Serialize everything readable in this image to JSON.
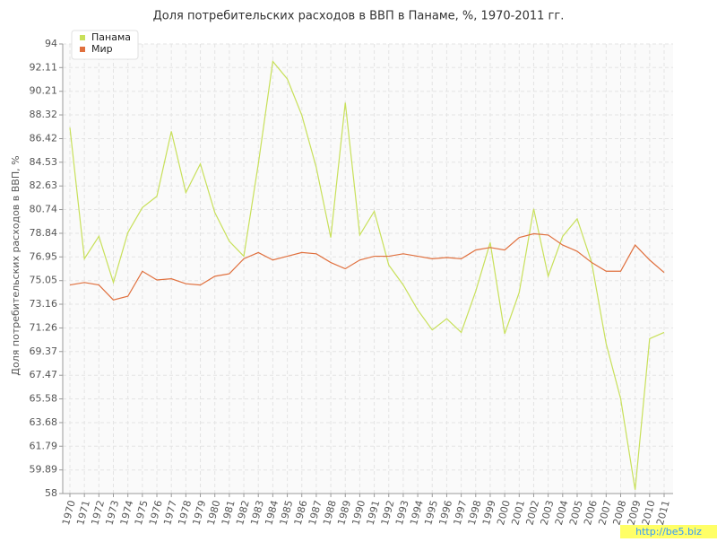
{
  "chart_data": {
    "type": "line",
    "title": "Доля потребительских расходов в ВВП в Панаме, %, 1970-2011 гг.",
    "y_label": "Доля потребительских расходов в ВВП, %",
    "watermark": "http://be5.biz",
    "categories": [
      "1970",
      "1971",
      "1972",
      "1973",
      "1974",
      "1975",
      "1976",
      "1977",
      "1978",
      "1979",
      "1980",
      "1981",
      "1982",
      "1983",
      "1984",
      "1985",
      "1986",
      "1987",
      "1988",
      "1989",
      "1990",
      "1991",
      "1992",
      "1993",
      "1994",
      "1995",
      "1996",
      "1997",
      "1998",
      "1999",
      "2000",
      "2001",
      "2002",
      "2003",
      "2004",
      "2005",
      "2006",
      "2007",
      "2008",
      "2009",
      "2010",
      "2011"
    ],
    "series": [
      {
        "name": "Панама",
        "color": "#c8e05a",
        "values": [
          87.3,
          76.8,
          78.6,
          74.9,
          78.9,
          80.9,
          81.8,
          87.0,
          82.1,
          84.4,
          80.5,
          78.2,
          77.0,
          84.4,
          92.6,
          91.2,
          88.3,
          84.1,
          78.5,
          89.3,
          78.7,
          80.6,
          76.3,
          74.7,
          72.7,
          71.1,
          72.0,
          70.9,
          74.2,
          78.1,
          70.8,
          74.1,
          80.8,
          75.4,
          78.6,
          80.0,
          76.5,
          70.0,
          65.6,
          58.3,
          70.4,
          70.9
        ]
      },
      {
        "name": "Мир",
        "color": "#e0703e",
        "values": [
          74.7,
          74.9,
          74.7,
          73.5,
          73.8,
          75.8,
          75.1,
          75.2,
          74.8,
          74.7,
          75.4,
          75.6,
          76.8,
          77.3,
          76.7,
          77.0,
          77.3,
          77.2,
          76.5,
          76.0,
          76.7,
          77.0,
          77.0,
          77.2,
          77.0,
          76.8,
          76.9,
          76.8,
          77.5,
          77.7,
          77.5,
          78.5,
          78.8,
          78.7,
          77.9,
          77.4,
          76.5,
          75.8,
          75.8,
          77.9,
          76.7,
          75.7
        ]
      }
    ],
    "ylim": [
      58,
      94
    ],
    "yticks": [
      58,
      59.89,
      61.79,
      63.68,
      65.58,
      67.47,
      69.37,
      71.26,
      73.16,
      75.05,
      76.95,
      78.84,
      80.74,
      82.63,
      84.53,
      86.42,
      88.32,
      90.21,
      92.11,
      94
    ],
    "grid": true,
    "legend": "top-left"
  }
}
